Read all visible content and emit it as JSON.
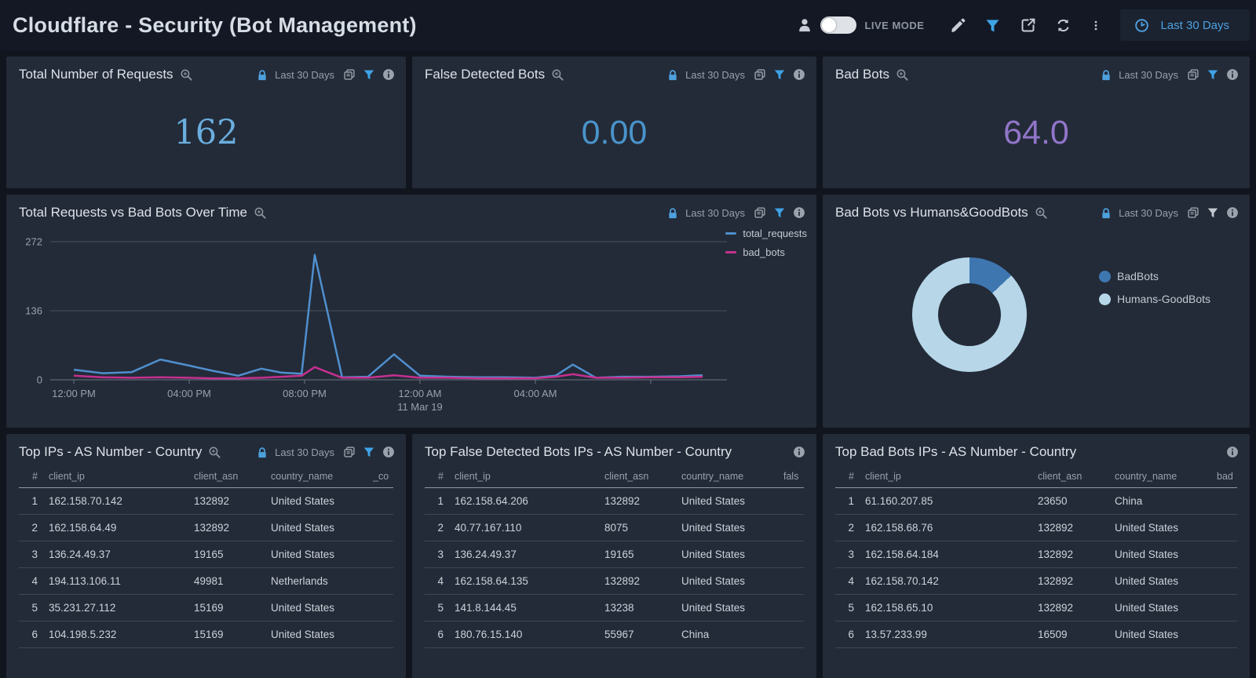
{
  "header": {
    "title": "Cloudflare - Security (Bot Management)",
    "live_mode_label": "LIVE MODE",
    "time_range_label": "Last 30 Days"
  },
  "panel_range_label": "Last 30 Days",
  "colors": {
    "accent_blue": "#3fa3e6",
    "lock_blue": "#4da0dd",
    "stat_blue_serif": "#6aaede",
    "stat_blue": "#4a94cb",
    "stat_purple": "#9175c9",
    "line_total": "#4f8fce",
    "line_bad": "#c5308f",
    "donut_dark": "#3e76b0",
    "donut_light": "#b7d7e9"
  },
  "stats": [
    {
      "title": "Total Number of Requests",
      "value": "162",
      "color": "#6aaede",
      "serif": true
    },
    {
      "title": "False Detected Bots",
      "value": "0.00",
      "color": "#4a94cb",
      "serif": false
    },
    {
      "title": "Bad Bots",
      "value": "64.0",
      "color": "#9175c9",
      "serif": false
    }
  ],
  "chart_data": [
    {
      "type": "line",
      "title": "Total Requests vs Bad Bots Over Time",
      "ylabel": "",
      "xlabel": "",
      "ylim": [
        0,
        272
      ],
      "yticks": [
        0,
        136,
        272
      ],
      "xticks": [
        {
          "h": 0,
          "label": "12:00 PM",
          "sublabel": ""
        },
        {
          "h": 4,
          "label": "04:00 PM",
          "sublabel": ""
        },
        {
          "h": 8,
          "label": "08:00 PM",
          "sublabel": ""
        },
        {
          "h": 12,
          "label": "12:00 AM",
          "sublabel": "11 Mar 19"
        },
        {
          "h": 16,
          "label": "04:00 AM",
          "sublabel": ""
        },
        {
          "h": 20,
          "label": "",
          "sublabel": ""
        }
      ],
      "legend_position": "right-top",
      "grid": true,
      "series": [
        {
          "name": "total_requests",
          "color": "#4f8fce",
          "points": [
            [
              0,
              20
            ],
            [
              1,
              13
            ],
            [
              2,
              15
            ],
            [
              3,
              40
            ],
            [
              4,
              28
            ],
            [
              4.8,
              18
            ],
            [
              5.7,
              8
            ],
            [
              6.5,
              22
            ],
            [
              7.2,
              14
            ],
            [
              7.9,
              12
            ],
            [
              8.35,
              246
            ],
            [
              9.3,
              5
            ],
            [
              10.2,
              6
            ],
            [
              11.1,
              50
            ],
            [
              12,
              8
            ],
            [
              13,
              6
            ],
            [
              14,
              5
            ],
            [
              15,
              5
            ],
            [
              16,
              4
            ],
            [
              16.7,
              8
            ],
            [
              17.3,
              30
            ],
            [
              18.1,
              4
            ],
            [
              19,
              6
            ],
            [
              20,
              6
            ],
            [
              21,
              7
            ],
            [
              21.8,
              9
            ]
          ]
        },
        {
          "name": "bad_bots",
          "color": "#c5308f",
          "points": [
            [
              0,
              8
            ],
            [
              1,
              5
            ],
            [
              2,
              4
            ],
            [
              3,
              5
            ],
            [
              4,
              4
            ],
            [
              4.8,
              3
            ],
            [
              5.7,
              3
            ],
            [
              6.5,
              4
            ],
            [
              7.2,
              6
            ],
            [
              7.9,
              8
            ],
            [
              8.35,
              25
            ],
            [
              9.3,
              4
            ],
            [
              10.2,
              4
            ],
            [
              11.1,
              9
            ],
            [
              12,
              4
            ],
            [
              13,
              4
            ],
            [
              14,
              3
            ],
            [
              15,
              3
            ],
            [
              16,
              3
            ],
            [
              16.7,
              6
            ],
            [
              17.3,
              11
            ],
            [
              18.1,
              4
            ],
            [
              19,
              4
            ],
            [
              20,
              5
            ],
            [
              21,
              5
            ],
            [
              21.8,
              6
            ]
          ]
        }
      ]
    },
    {
      "type": "pie",
      "title": "Bad Bots vs Humans&GoodBots",
      "donut": true,
      "legend_position": "right",
      "slices": [
        {
          "label": "BadBots",
          "pct": 13,
          "color": "#3e76b0"
        },
        {
          "label": "Humans-GoodBots",
          "pct": 87,
          "color": "#b7d7e9"
        }
      ]
    }
  ],
  "panels": {
    "line_chart_title": "Total Requests vs Bad Bots Over Time",
    "donut_title": "Bad Bots vs Humans&GoodBots"
  },
  "tables": [
    {
      "title": "Top IPs - AS Number - Country",
      "columns": [
        "#",
        "client_ip",
        "client_asn",
        "country_name",
        "_co"
      ],
      "rows": [
        [
          "1",
          "162.158.70.142",
          "132892",
          "United States",
          ""
        ],
        [
          "2",
          "162.158.64.49",
          "132892",
          "United States",
          ""
        ],
        [
          "3",
          "136.24.49.37",
          "19165",
          "United States",
          ""
        ],
        [
          "4",
          "194.113.106.11",
          "49981",
          "Netherlands",
          ""
        ],
        [
          "5",
          "35.231.27.112",
          "15169",
          "United States",
          ""
        ],
        [
          "6",
          "104.198.5.232",
          "15169",
          "United States",
          ""
        ]
      ]
    },
    {
      "title": "Top False Detected Bots IPs - AS Number - Country",
      "columns": [
        "#",
        "client_ip",
        "client_asn",
        "country_name",
        "fals"
      ],
      "rows": [
        [
          "1",
          "162.158.64.206",
          "132892",
          "United States",
          ""
        ],
        [
          "2",
          "40.77.167.110",
          "8075",
          "United States",
          ""
        ],
        [
          "3",
          "136.24.49.37",
          "19165",
          "United States",
          ""
        ],
        [
          "4",
          "162.158.64.135",
          "132892",
          "United States",
          ""
        ],
        [
          "5",
          "141.8.144.45",
          "13238",
          "United States",
          ""
        ],
        [
          "6",
          "180.76.15.140",
          "55967",
          "China",
          ""
        ]
      ]
    },
    {
      "title": "Top Bad Bots IPs - AS Number - Country",
      "columns": [
        "#",
        "client_ip",
        "client_asn",
        "country_name",
        "bad"
      ],
      "rows": [
        [
          "1",
          "61.160.207.85",
          "23650",
          "China",
          ""
        ],
        [
          "2",
          "162.158.68.76",
          "132892",
          "United States",
          ""
        ],
        [
          "3",
          "162.158.64.184",
          "132892",
          "United States",
          ""
        ],
        [
          "4",
          "162.158.70.142",
          "132892",
          "United States",
          ""
        ],
        [
          "5",
          "162.158.65.10",
          "132892",
          "United States",
          ""
        ],
        [
          "6",
          "13.57.233.99",
          "16509",
          "United States",
          ""
        ]
      ]
    }
  ]
}
